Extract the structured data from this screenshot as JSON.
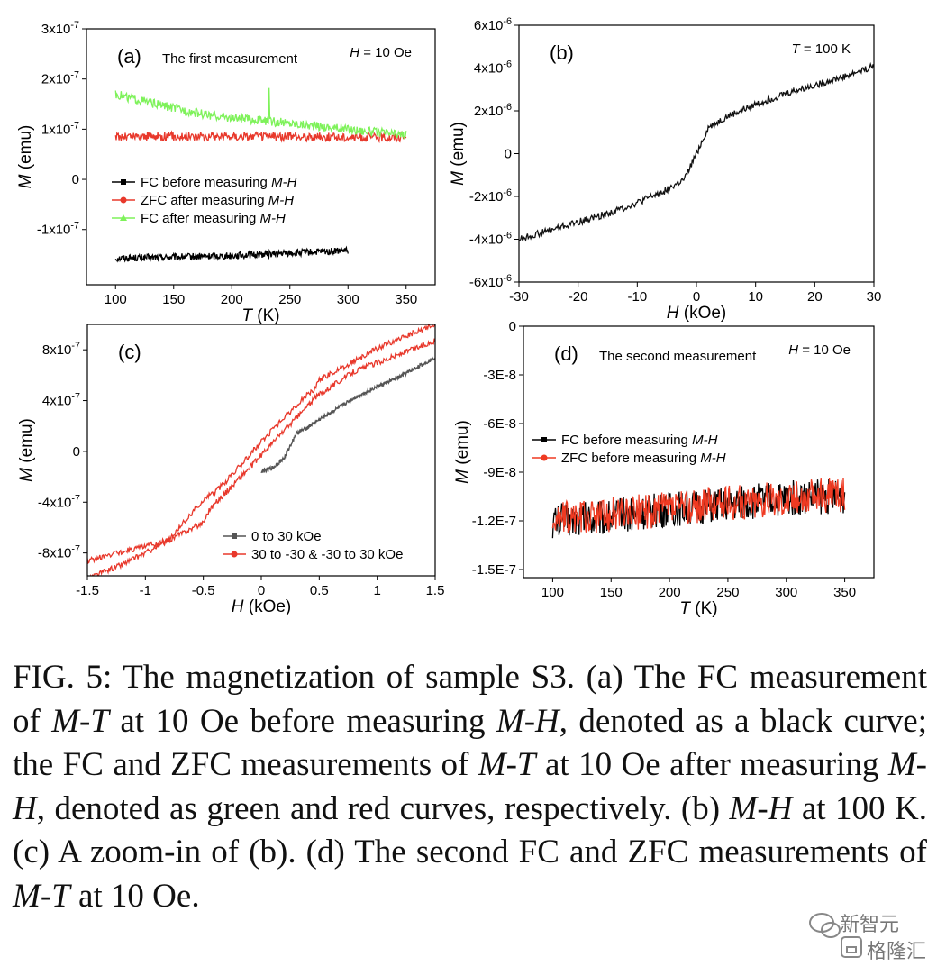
{
  "chart_data": [
    {
      "id": "a",
      "type": "line",
      "panel_label": "(a)",
      "title": "The first measurement",
      "condition": {
        "sym": "H",
        "rest": " = 10 Oe"
      },
      "xlabel": {
        "sym": "T",
        "rest": " (K)"
      },
      "ylabel": {
        "sym": "M",
        "rest": " (emu)"
      },
      "xlim": [
        75,
        375
      ],
      "ylim": [
        -2.1e-07,
        3e-07
      ],
      "xticks": [
        100,
        150,
        200,
        250,
        300,
        350
      ],
      "yticks": [
        {
          "v": 3e-07,
          "m": "3x10",
          "e": "-7"
        },
        {
          "v": 2e-07,
          "m": "2x10",
          "e": "-7"
        },
        {
          "v": 1e-07,
          "m": "1x10",
          "e": "-7"
        },
        {
          "v": 0,
          "m": "0",
          "e": ""
        },
        {
          "v": -1e-07,
          "m": "-1x10",
          "e": "-7"
        }
      ],
      "legend": {
        "placement": "center-left"
      },
      "series": [
        {
          "name_parts": [
            "FC before measuring ",
            "M-H"
          ],
          "color": "#000000",
          "marker": "square",
          "x": [
            100,
            150,
            200,
            250,
            300
          ],
          "y": [
            -1.57e-07,
            -1.55e-07,
            -1.52e-07,
            -1.47e-07,
            -1.42e-07
          ],
          "noise": 7e-09
        },
        {
          "name_parts": [
            "ZFC after measuring ",
            "M-H"
          ],
          "color": "#e8382b",
          "marker": "circle",
          "x": [
            100,
            150,
            200,
            250,
            300,
            350
          ],
          "y": [
            8.5e-08,
            8.6e-08,
            8.6e-08,
            8.5e-08,
            8.4e-08,
            8.4e-08
          ],
          "noise": 9e-09
        },
        {
          "name_parts": [
            "FC after measuring ",
            "M-H"
          ],
          "color": "#7ef25a",
          "marker": "triangle",
          "x": [
            100,
            125,
            150,
            175,
            200,
            250,
            300,
            350
          ],
          "y": [
            1.7e-07,
            1.55e-07,
            1.42e-07,
            1.3e-07,
            1.22e-07,
            1.12e-07,
            1e-07,
            8.8e-08
          ],
          "noise": 9e-09,
          "spike": {
            "x": 232,
            "y": 1.82e-07
          }
        }
      ]
    },
    {
      "id": "b",
      "type": "line",
      "panel_label": "(b)",
      "condition": {
        "sym": "T",
        "rest": " = 100 K"
      },
      "xlabel": {
        "sym": "H",
        "rest": " (kOe)"
      },
      "ylabel": {
        "sym": "M",
        "rest": " (emu)"
      },
      "xlim": [
        -30,
        30
      ],
      "ylim": [
        -6e-06,
        6e-06
      ],
      "xticks": [
        -30,
        -20,
        -10,
        0,
        10,
        20,
        30
      ],
      "yticks": [
        {
          "v": 6e-06,
          "m": "6x10",
          "e": "-6"
        },
        {
          "v": 4e-06,
          "m": "4x10",
          "e": "-6"
        },
        {
          "v": 2e-06,
          "m": "2x10",
          "e": "-6"
        },
        {
          "v": 0,
          "m": "0",
          "e": ""
        },
        {
          "v": -2e-06,
          "m": "-2x10",
          "e": "-6"
        },
        {
          "v": -4e-06,
          "m": "-4x10",
          "e": "-6"
        },
        {
          "v": -6e-06,
          "m": "-6x10",
          "e": "-6"
        }
      ],
      "series": [
        {
          "name": "",
          "color": "#111111",
          "x": [
            -30,
            -25,
            -20,
            -15,
            -10,
            -5,
            -2,
            -1,
            0,
            1,
            2,
            5,
            10,
            15,
            20,
            25,
            30
          ],
          "y": [
            -4e-06,
            -3.6e-06,
            -3.2e-06,
            -2.8e-06,
            -2.3e-06,
            -1.7e-06,
            -1.2e-06,
            -6e-07,
            0.0,
            6e-07,
            1.2e-06,
            1.7e-06,
            2.3e-06,
            2.8e-06,
            3.2e-06,
            3.6e-06,
            4.1e-06
          ],
          "noise": 1.6e-07
        }
      ]
    },
    {
      "id": "c",
      "type": "line",
      "panel_label": "(c)",
      "xlabel": {
        "sym": "H",
        "rest": " (kOe)"
      },
      "ylabel": {
        "sym": "M",
        "rest": " (emu)"
      },
      "xlim": [
        -1.5,
        1.5
      ],
      "ylim": [
        -9.8e-07,
        1e-06
      ],
      "xticks": [
        -1.5,
        -1,
        -0.5,
        0,
        0.5,
        1,
        1.5
      ],
      "yticks": [
        {
          "v": 8e-07,
          "m": "8x10",
          "e": "-7"
        },
        {
          "v": 4e-07,
          "m": "4x10",
          "e": "-7"
        },
        {
          "v": 0,
          "m": "0",
          "e": ""
        },
        {
          "v": -4e-07,
          "m": "-4x10",
          "e": "-7"
        },
        {
          "v": -8e-07,
          "m": "-8x10",
          "e": "-7"
        }
      ],
      "legend": {
        "placement": "bottom-right"
      },
      "series": [
        {
          "name": "0 to 30 kOe",
          "color": "#555555",
          "marker": "square",
          "x": [
            0,
            0.1,
            0.2,
            0.3,
            0.4,
            0.5,
            0.8,
            1.0,
            1.2,
            1.5
          ],
          "y": [
            -1.6e-07,
            -1.3e-07,
            -5e-08,
            1.4e-07,
            1.9e-07,
            2.5e-07,
            4.2e-07,
            5.1e-07,
            5.9e-07,
            7.4e-07
          ],
          "noise": 1.5e-08
        },
        {
          "name": "30 to -30 & -30 to 30 kOe",
          "color": "#e8382b",
          "marker": "circle",
          "x": [
            1.5,
            1.2,
            1.0,
            0.8,
            0.5,
            0.45,
            0.4,
            0.3,
            0.2,
            0.1,
            0.0,
            -0.1,
            -0.2,
            -0.3,
            -0.4,
            -0.5,
            -0.8,
            -1.5
          ],
          "y": [
            1e-06,
            8.9e-07,
            8.1e-07,
            7.1e-07,
            5.6e-07,
            4.8e-07,
            4.5e-07,
            3.6e-07,
            2.7e-07,
            1.7e-07,
            8e-08,
            -3e-08,
            -1.3e-07,
            -2.3e-07,
            -3.2e-07,
            -3.8e-07,
            -7e-07,
            -8.6e-07
          ],
          "noise": 2.2e-08
        },
        {
          "name": "",
          "color": "#e8382b",
          "x": [
            -1.5,
            -1.2,
            -1.0,
            -0.8,
            -0.5,
            -0.45,
            -0.4,
            -0.3,
            -0.2,
            -0.1,
            0.0,
            0.1,
            0.2,
            0.3,
            0.4,
            0.5,
            0.8,
            1.5
          ],
          "y": [
            -1e-06,
            -8.9e-07,
            -8e-07,
            -7e-07,
            -5.6e-07,
            -4.6e-07,
            -4.1e-07,
            -3.2e-07,
            -2.2e-07,
            -1.3e-07,
            -3e-08,
            7e-08,
            1.7e-07,
            2.6e-07,
            3.6e-07,
            4.5e-07,
            6.3e-07,
            8.7e-07
          ],
          "noise": 2.2e-08
        }
      ]
    },
    {
      "id": "d",
      "type": "line",
      "panel_label": "(d)",
      "title": "The second measurement",
      "condition": {
        "sym": "H",
        "rest": " = 10 Oe"
      },
      "xlabel": {
        "sym": "T",
        "rest": " (K)"
      },
      "ylabel": {
        "sym": "M",
        "rest": " (emu)"
      },
      "xlim": [
        75,
        375
      ],
      "ylim": [
        -1.55e-07,
        0
      ],
      "xticks": [
        100,
        150,
        200,
        250,
        300,
        350
      ],
      "yticks": [
        {
          "v": 0,
          "m": "0",
          "e": ""
        },
        {
          "v": -3e-08,
          "m": "-3E-8",
          "e": ""
        },
        {
          "v": -6e-08,
          "m": "-6E-8",
          "e": ""
        },
        {
          "v": -9e-08,
          "m": "-9E-8",
          "e": ""
        },
        {
          "v": -1.2e-07,
          "m": "-1.2E-7",
          "e": ""
        },
        {
          "v": -1.5e-07,
          "m": "-1.5E-7",
          "e": ""
        }
      ],
      "legend": {
        "placement": "center-left"
      },
      "series": [
        {
          "name_parts": [
            "FC before measuring ",
            "M-H"
          ],
          "color": "#000000",
          "marker": "square",
          "x": [
            100,
            150,
            200,
            250,
            300,
            350
          ],
          "y": [
            -1.2e-07,
            -1.17e-07,
            -1.13e-07,
            -1.1e-07,
            -1.06e-07,
            -1.05e-07
          ],
          "noise": 1.1e-08
        },
        {
          "name_parts": [
            "ZFC before measuring ",
            "M-H"
          ],
          "color": "#ef3a22",
          "marker": "circle",
          "x": [
            100,
            150,
            200,
            250,
            300,
            350
          ],
          "y": [
            -1.19e-07,
            -1.16e-07,
            -1.13e-07,
            -1.09e-07,
            -1.06e-07,
            -1.04e-07
          ],
          "noise": 1.1e-08
        }
      ]
    }
  ],
  "caption": {
    "segments": [
      {
        "t": "FIG. 5:  The magnetization of sample S3. (a) The FC measurement of ",
        "i": false
      },
      {
        "t": "M-T",
        "i": true
      },
      {
        "t": " at 10 Oe before measuring ",
        "i": false
      },
      {
        "t": "M-H",
        "i": true
      },
      {
        "t": ", denoted as a black curve; the FC and ZFC measurements of ",
        "i": false
      },
      {
        "t": "M-T",
        "i": true
      },
      {
        "t": " at 10 Oe after measuring ",
        "i": false
      },
      {
        "t": "M-H",
        "i": true
      },
      {
        "t": ", denoted as green and red curves, respectively. (b) ",
        "i": false
      },
      {
        "t": "M-H",
        "i": true
      },
      {
        "t": " at 100 K. (c) A zoom-in of (b). (d) The second FC and ZFC measurements of ",
        "i": false
      },
      {
        "t": "M-T",
        "i": true
      },
      {
        "t": " at 10 Oe.",
        "i": false
      }
    ]
  },
  "watermark": {
    "line1": "新智元",
    "line2": "格隆汇"
  }
}
